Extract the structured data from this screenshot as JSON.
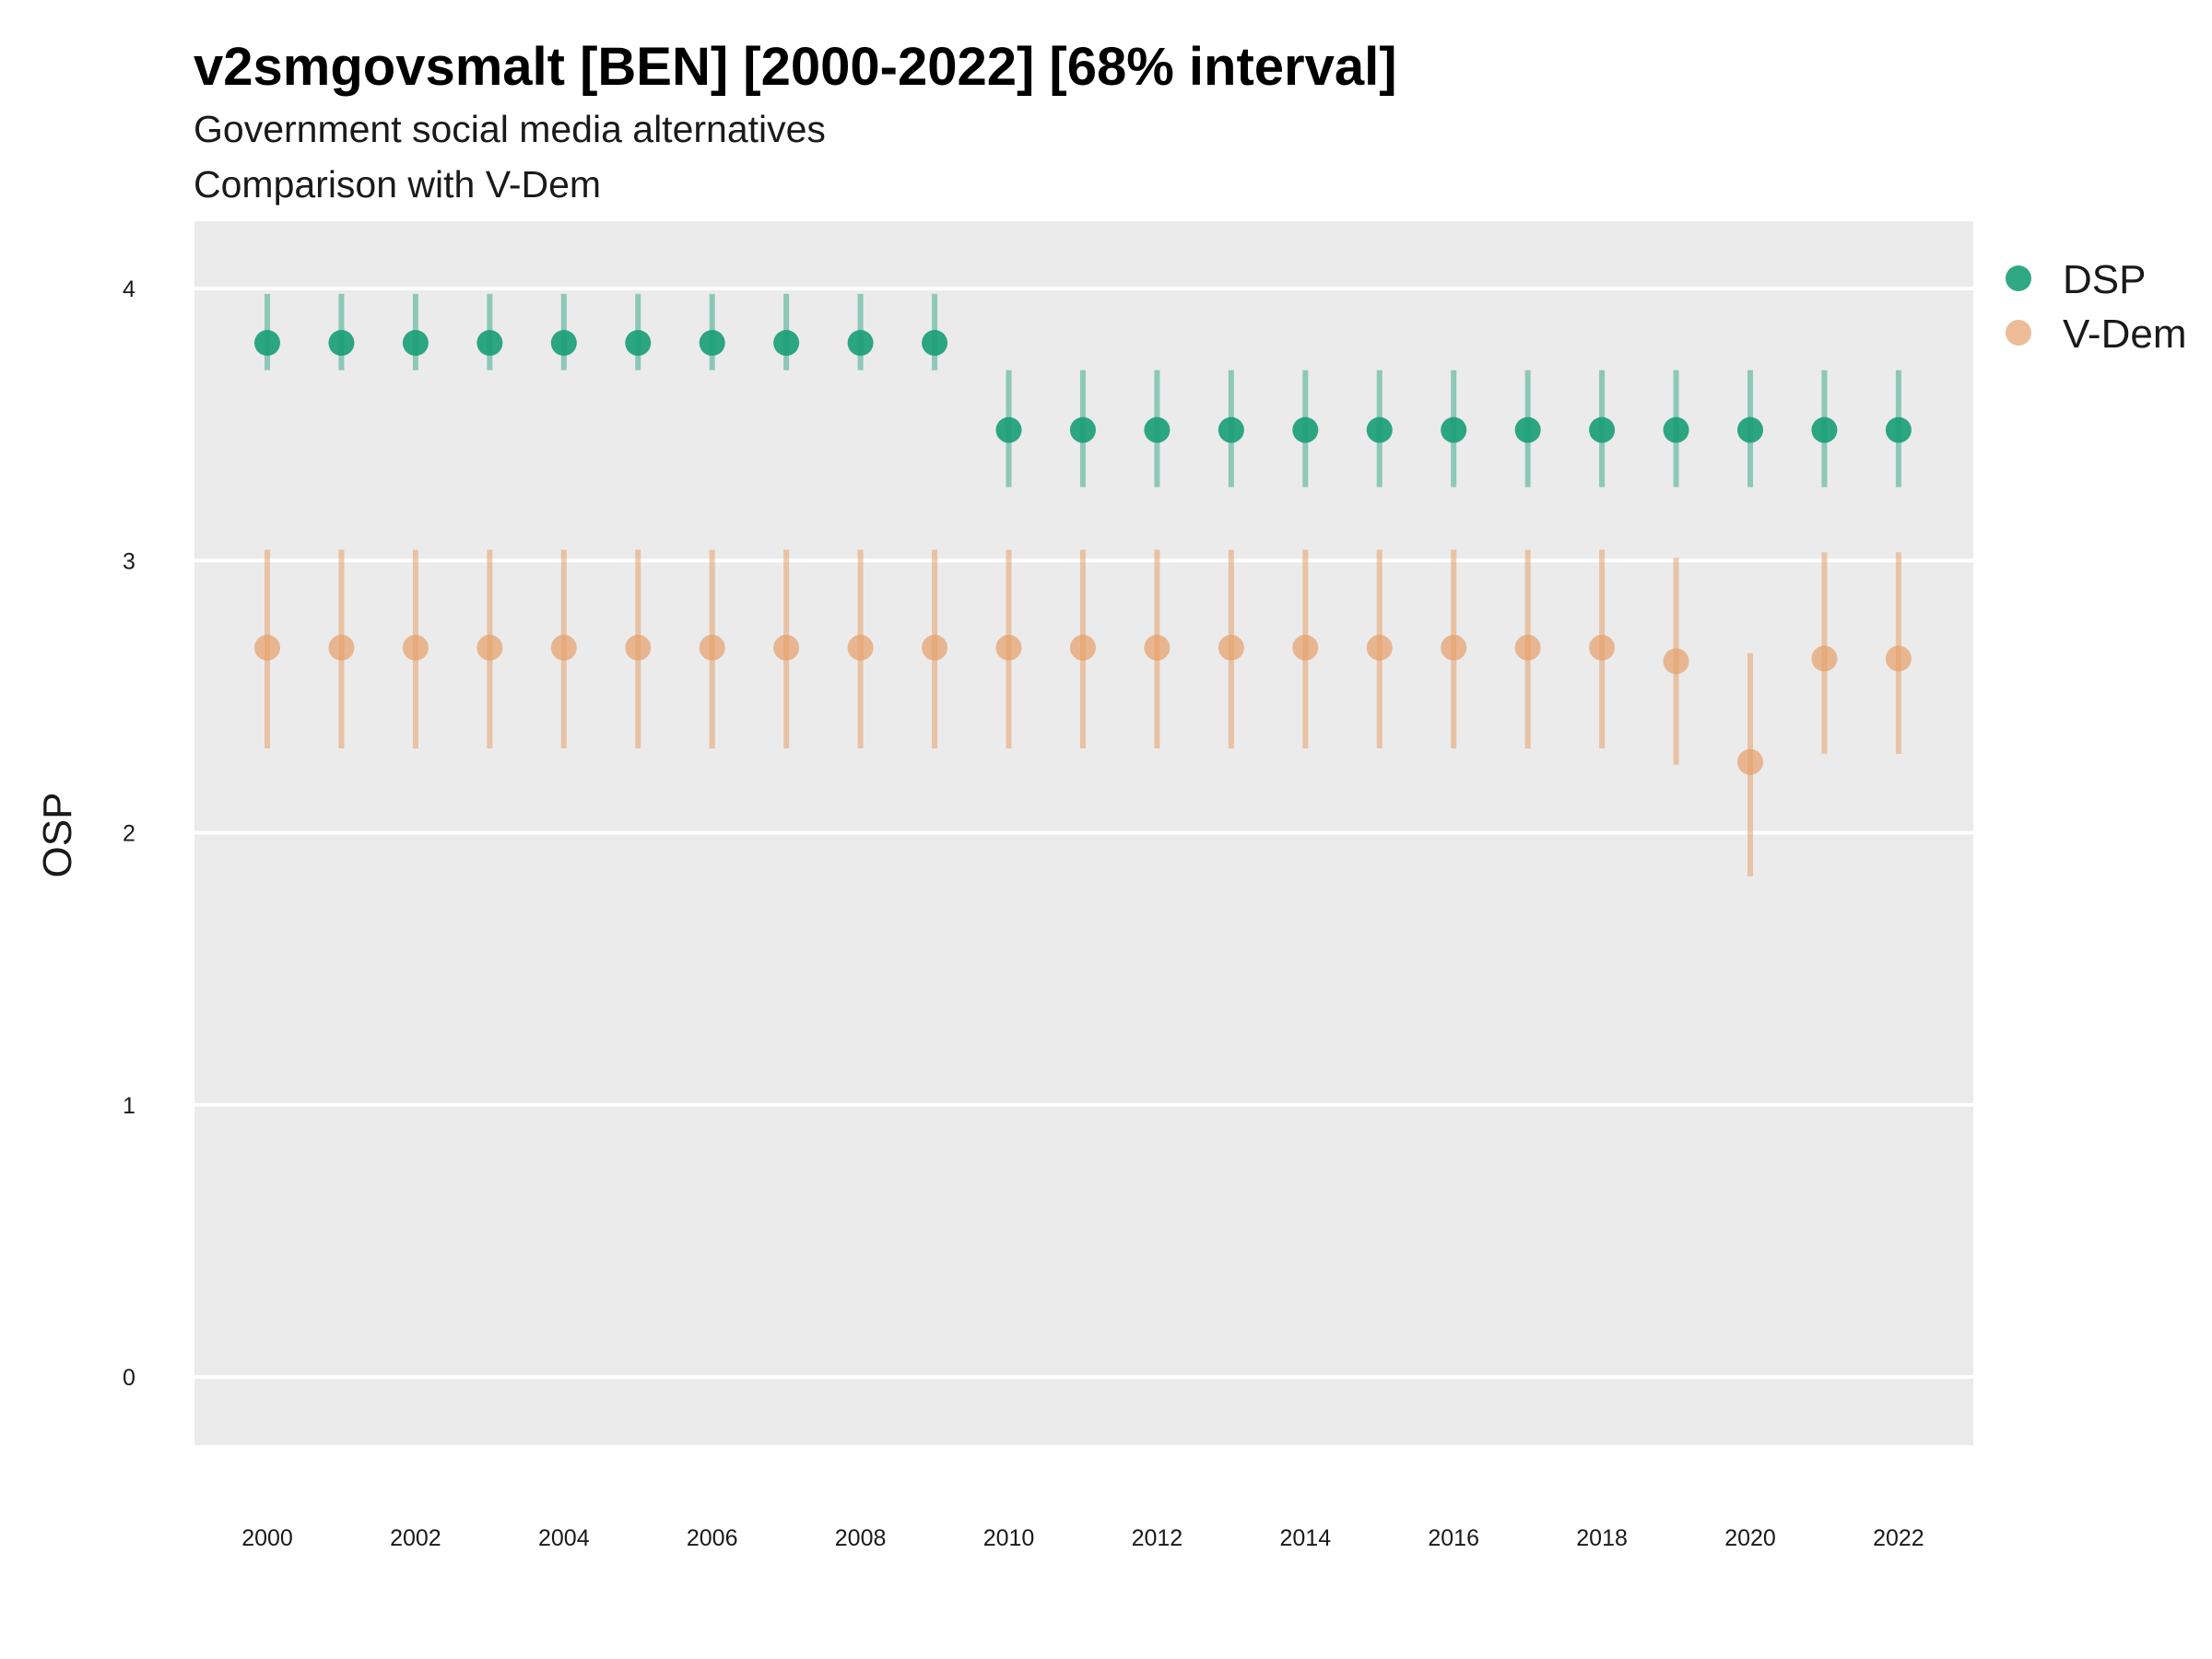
{
  "chart_data": {
    "type": "scatter",
    "title": "v2smgovsmalt [BEN] [2000-2022] [68% interval]",
    "subtitle": "Government social media alternatives",
    "caption": "Comparison with V-Dem",
    "ylabel": "OSP",
    "xlabel": "",
    "ylim": [
      -0.25,
      4.25
    ],
    "yticks": [
      0,
      1,
      2,
      3,
      4
    ],
    "xticks": [
      2000,
      2002,
      2004,
      2006,
      2008,
      2010,
      2012,
      2014,
      2016,
      2018,
      2020,
      2022
    ],
    "x": [
      2000,
      2001,
      2002,
      2003,
      2004,
      2005,
      2006,
      2007,
      2008,
      2009,
      2010,
      2011,
      2012,
      2013,
      2014,
      2015,
      2016,
      2017,
      2018,
      2019,
      2020,
      2021,
      2022
    ],
    "grid": true,
    "legend_position": "right",
    "series": [
      {
        "name": "DSP",
        "color": "#1b9e77",
        "values": [
          3.8,
          3.8,
          3.8,
          3.8,
          3.8,
          3.8,
          3.8,
          3.8,
          3.8,
          3.8,
          3.48,
          3.48,
          3.48,
          3.48,
          3.48,
          3.48,
          3.48,
          3.48,
          3.48,
          3.48,
          3.48,
          3.48,
          3.48
        ],
        "lower": [
          3.7,
          3.7,
          3.7,
          3.7,
          3.7,
          3.7,
          3.7,
          3.7,
          3.7,
          3.7,
          3.27,
          3.27,
          3.27,
          3.27,
          3.27,
          3.27,
          3.27,
          3.27,
          3.27,
          3.27,
          3.27,
          3.27,
          3.27
        ],
        "upper": [
          3.98,
          3.98,
          3.98,
          3.98,
          3.98,
          3.98,
          3.98,
          3.98,
          3.98,
          3.98,
          3.7,
          3.7,
          3.7,
          3.7,
          3.7,
          3.7,
          3.7,
          3.7,
          3.7,
          3.7,
          3.7,
          3.7,
          3.7
        ]
      },
      {
        "name": "V-Dem",
        "color": "#e6a06a",
        "values": [
          2.68,
          2.68,
          2.68,
          2.68,
          2.68,
          2.68,
          2.68,
          2.68,
          2.68,
          2.68,
          2.68,
          2.68,
          2.68,
          2.68,
          2.68,
          2.68,
          2.68,
          2.68,
          2.68,
          2.63,
          2.26,
          2.64,
          2.64
        ],
        "lower": [
          2.31,
          2.31,
          2.31,
          2.31,
          2.31,
          2.31,
          2.31,
          2.31,
          2.31,
          2.31,
          2.31,
          2.31,
          2.31,
          2.31,
          2.31,
          2.31,
          2.31,
          2.31,
          2.31,
          2.25,
          1.84,
          2.29,
          2.29
        ],
        "upper": [
          3.04,
          3.04,
          3.04,
          3.04,
          3.04,
          3.04,
          3.04,
          3.04,
          3.04,
          3.04,
          3.04,
          3.04,
          3.04,
          3.04,
          3.04,
          3.04,
          3.04,
          3.04,
          3.04,
          3.01,
          2.66,
          3.03,
          3.03
        ]
      }
    ]
  }
}
